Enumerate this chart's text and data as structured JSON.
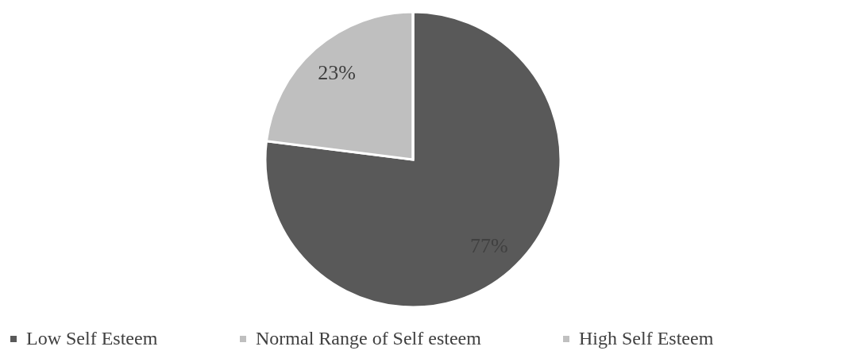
{
  "chart_data": {
    "type": "pie",
    "categories": [
      "Low Self Esteem",
      "Normal Range of Self esteem",
      "High Self Esteem"
    ],
    "values": [
      77,
      23,
      0
    ],
    "colors": [
      "#595959",
      "#bfbfbf",
      "#c0c0c0"
    ],
    "value_labels": [
      "77%",
      "23%",
      null
    ],
    "legend": "bottom"
  }
}
